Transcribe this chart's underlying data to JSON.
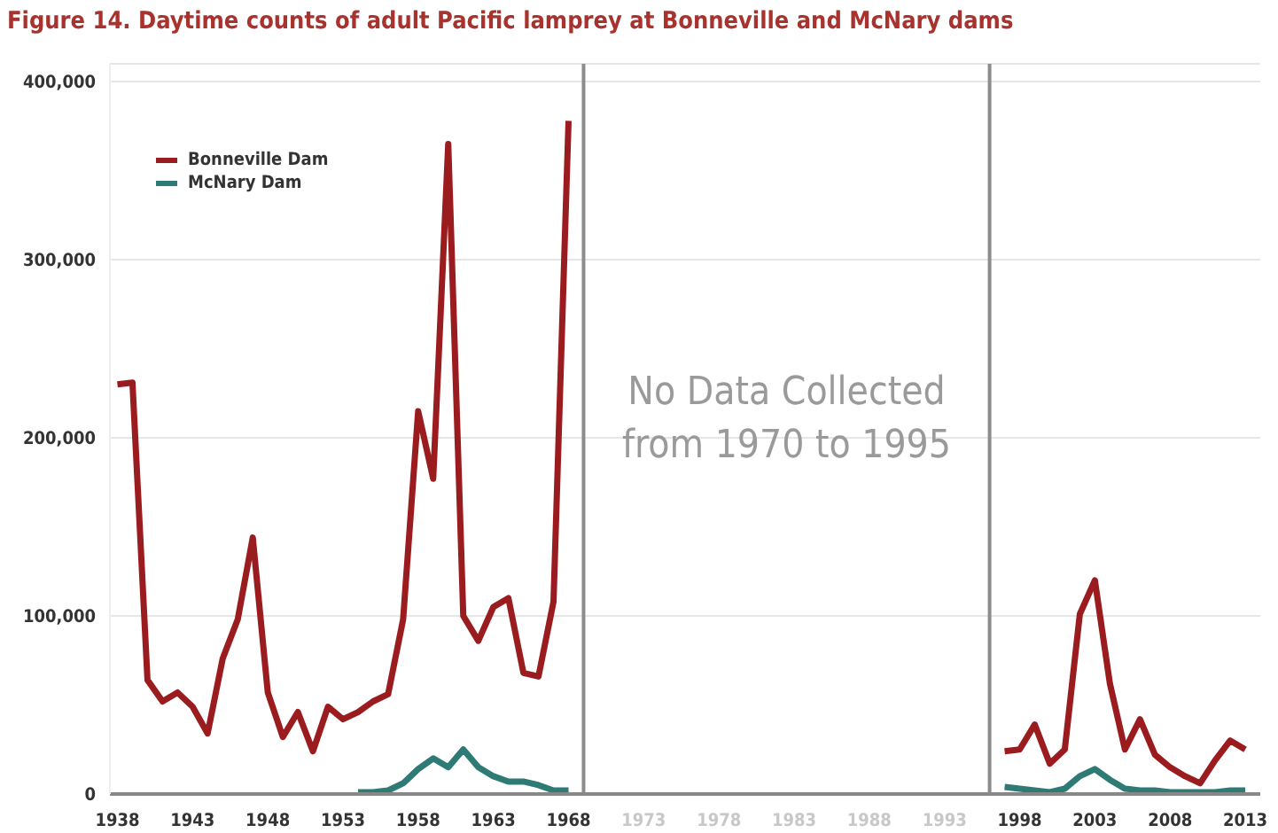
{
  "chart_data": {
    "type": "line",
    "title": "Figure 14. Daytime counts of adult Pacific lamprey at Bonneville and McNary dams",
    "x": [
      1938,
      1939,
      1940,
      1941,
      1942,
      1943,
      1944,
      1945,
      1946,
      1947,
      1948,
      1949,
      1950,
      1951,
      1952,
      1953,
      1954,
      1955,
      1956,
      1957,
      1958,
      1959,
      1960,
      1961,
      1962,
      1963,
      1964,
      1965,
      1966,
      1967,
      1968,
      1969,
      1997,
      1998,
      1999,
      2000,
      2001,
      2002,
      2003,
      2004,
      2005,
      2006,
      2007,
      2008,
      2009,
      2010,
      2011,
      2012,
      2013
    ],
    "series": [
      {
        "name": "Bonneville Dam",
        "color": "#9b1c1f",
        "values": [
          230000,
          231000,
          64000,
          52000,
          57000,
          49000,
          34000,
          76000,
          98000,
          144000,
          57000,
          32000,
          46000,
          24000,
          49000,
          42000,
          46000,
          52000,
          56000,
          98000,
          215000,
          177000,
          365000,
          100000,
          86000,
          105000,
          110000,
          68000,
          66000,
          108000,
          378000,
          null,
          24000,
          25000,
          39000,
          17000,
          25000,
          101000,
          120000,
          62000,
          25000,
          42000,
          22000,
          15000,
          10000,
          6000,
          19000,
          30000,
          25000
        ]
      },
      {
        "name": "McNary Dam",
        "color": "#2e7a74",
        "values": [
          null,
          null,
          null,
          null,
          null,
          null,
          null,
          null,
          null,
          null,
          null,
          null,
          null,
          null,
          null,
          null,
          1000,
          1000,
          2000,
          6000,
          14000,
          20000,
          15000,
          25000,
          15000,
          10000,
          7000,
          7000,
          5000,
          2000,
          2000,
          null,
          4000,
          3000,
          2000,
          1000,
          3000,
          10000,
          14000,
          8000,
          3000,
          2000,
          2000,
          1000,
          1000,
          1000,
          1000,
          2000,
          2000
        ]
      }
    ],
    "xlim": [
      1937.5,
      2014
    ],
    "xticks": [
      1938,
      1943,
      1948,
      1953,
      1958,
      1963,
      1968,
      1973,
      1978,
      1983,
      1988,
      1993,
      1998,
      2003,
      2008,
      2013
    ],
    "ylim": [
      0,
      410000
    ],
    "yticks": [
      0,
      {
        "value": 100000,
        "label": "100,000"
      },
      {
        "value": 200000,
        "label": "200,000"
      },
      {
        "value": 300000,
        "label": "300,000"
      },
      {
        "value": 400000,
        "label": "400,000"
      }
    ],
    "grid": "y",
    "legend": "top left",
    "marker": "none",
    "line_style": "solid",
    "ref_lines": [
      {
        "axis": "x",
        "value": 1969,
        "color": "#8c8c8c"
      },
      {
        "axis": "x",
        "value": 1996,
        "color": "#8c8c8c"
      }
    ],
    "annotations": [
      "No Data Collected from 1970 to 1995"
    ]
  }
}
